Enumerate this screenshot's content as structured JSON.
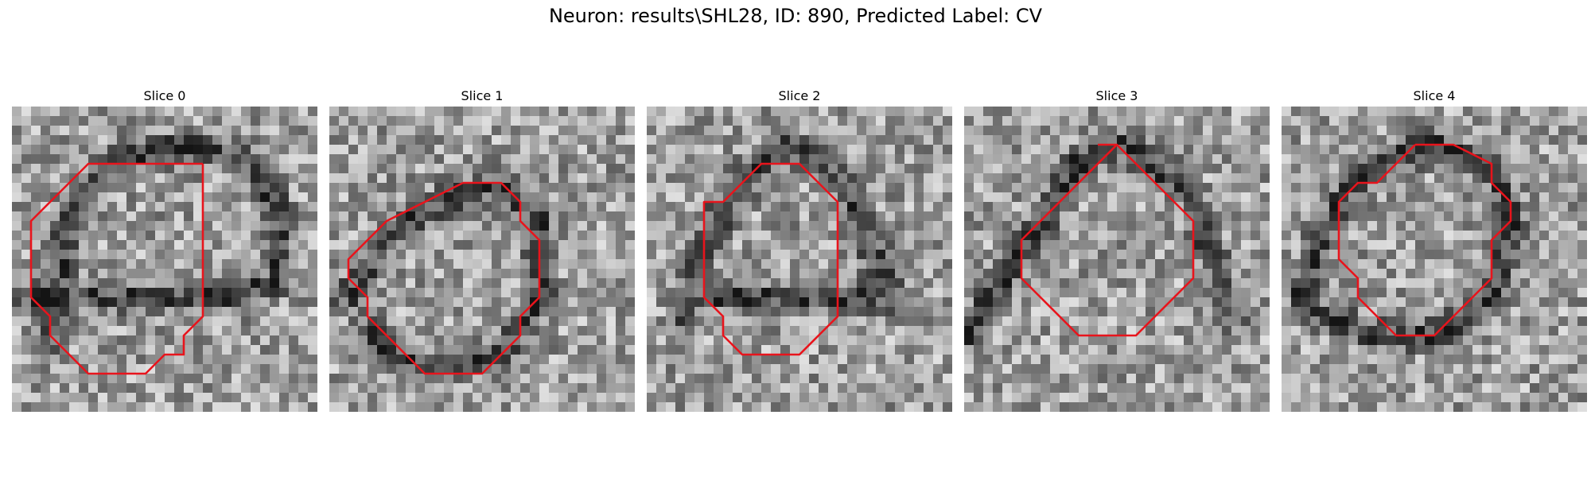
{
  "figure": {
    "title": "Neuron: results\\SHL28, ID: 890, Predicted Label: CV",
    "contour_color": "#e8141c"
  },
  "panels": [
    {
      "title": "Slice 0",
      "contour": [
        [
          10,
          3
        ],
        [
          4,
          3
        ],
        [
          3,
          4
        ],
        [
          2,
          5
        ],
        [
          1,
          6
        ],
        [
          1,
          10
        ],
        [
          2,
          11
        ],
        [
          2,
          12
        ],
        [
          3,
          13
        ],
        [
          4,
          14
        ],
        [
          5,
          14
        ],
        [
          7,
          14
        ],
        [
          8,
          13
        ],
        [
          9,
          13
        ],
        [
          9,
          12
        ],
        [
          10,
          11
        ],
        [
          10,
          10
        ],
        [
          10,
          4
        ],
        [
          10,
          3
        ]
      ],
      "dark_curve": [
        [
          2,
          12
        ],
        [
          3,
          6
        ],
        [
          5,
          3
        ],
        [
          9,
          2
        ],
        [
          13,
          3
        ],
        [
          14,
          6
        ],
        [
          14,
          9
        ],
        [
          12,
          10
        ],
        [
          8,
          10
        ],
        [
          4,
          10
        ],
        [
          1,
          10
        ]
      ]
    },
    {
      "title": "Slice 1",
      "contour": [
        [
          7,
          4
        ],
        [
          5,
          5
        ],
        [
          3,
          6
        ],
        [
          2,
          7
        ],
        [
          1,
          8
        ],
        [
          1,
          9
        ],
        [
          2,
          10
        ],
        [
          2,
          11
        ],
        [
          3,
          12
        ],
        [
          4,
          13
        ],
        [
          5,
          14
        ],
        [
          8,
          14
        ],
        [
          9,
          13
        ],
        [
          10,
          12
        ],
        [
          10,
          11
        ],
        [
          11,
          10
        ],
        [
          11,
          7
        ],
        [
          10,
          6
        ],
        [
          10,
          5
        ],
        [
          9,
          4
        ],
        [
          8,
          4
        ],
        [
          7,
          4
        ]
      ],
      "dark_curve": [
        [
          1,
          10
        ],
        [
          3,
          7
        ],
        [
          6,
          5
        ],
        [
          9,
          4
        ],
        [
          11,
          6
        ],
        [
          11,
          10
        ],
        [
          9,
          13
        ],
        [
          5,
          14
        ],
        [
          2,
          12
        ]
      ]
    },
    {
      "title": "Slice 2",
      "contour": [
        [
          7,
          3
        ],
        [
          6,
          3
        ],
        [
          5,
          4
        ],
        [
          4,
          5
        ],
        [
          3,
          5
        ],
        [
          3,
          7
        ],
        [
          3,
          10
        ],
        [
          4,
          11
        ],
        [
          4,
          12
        ],
        [
          5,
          13
        ],
        [
          6,
          13
        ],
        [
          8,
          13
        ],
        [
          9,
          12
        ],
        [
          10,
          11
        ],
        [
          10,
          10
        ],
        [
          10,
          5
        ],
        [
          9,
          4
        ],
        [
          8,
          3
        ],
        [
          7,
          3
        ]
      ],
      "dark_curve": [
        [
          2,
          11
        ],
        [
          3,
          7
        ],
        [
          5,
          4
        ],
        [
          7,
          2
        ],
        [
          9,
          3
        ],
        [
          11,
          5
        ],
        [
          12,
          8
        ],
        [
          13,
          10
        ],
        [
          10,
          10
        ],
        [
          7,
          10
        ],
        [
          3,
          10
        ]
      ]
    },
    {
      "title": "Slice 3",
      "contour": [
        [
          8,
          2
        ],
        [
          6,
          4
        ],
        [
          4,
          6
        ],
        [
          3,
          7
        ],
        [
          3,
          9
        ],
        [
          4,
          10
        ],
        [
          5,
          11
        ],
        [
          6,
          12
        ],
        [
          9,
          12
        ],
        [
          10,
          11
        ],
        [
          11,
          10
        ],
        [
          12,
          9
        ],
        [
          12,
          6
        ],
        [
          11,
          5
        ],
        [
          10,
          4
        ],
        [
          9,
          3
        ],
        [
          8,
          2
        ],
        [
          7,
          2
        ]
      ],
      "dark_curve": [
        [
          0,
          12
        ],
        [
          2,
          9
        ],
        [
          4,
          6
        ],
        [
          6,
          3
        ],
        [
          8,
          2
        ],
        [
          10,
          3
        ],
        [
          12,
          5
        ],
        [
          13,
          8
        ],
        [
          14,
          11
        ]
      ]
    },
    {
      "title": "Slice 4",
      "contour": [
        [
          7,
          2
        ],
        [
          6,
          3
        ],
        [
          5,
          4
        ],
        [
          4,
          4
        ],
        [
          3,
          5
        ],
        [
          3,
          8
        ],
        [
          4,
          9
        ],
        [
          4,
          10
        ],
        [
          5,
          11
        ],
        [
          6,
          12
        ],
        [
          8,
          12
        ],
        [
          9,
          11
        ],
        [
          10,
          10
        ],
        [
          11,
          9
        ],
        [
          11,
          7
        ],
        [
          12,
          6
        ],
        [
          12,
          5
        ],
        [
          11,
          4
        ],
        [
          11,
          3
        ],
        [
          9,
          2
        ],
        [
          7,
          2
        ]
      ],
      "dark_curve": [
        [
          1,
          10
        ],
        [
          2,
          7
        ],
        [
          3,
          5
        ],
        [
          5,
          3
        ],
        [
          8,
          2
        ],
        [
          11,
          3
        ],
        [
          12,
          6
        ],
        [
          11,
          10
        ],
        [
          8,
          12
        ],
        [
          5,
          12
        ],
        [
          2,
          11
        ]
      ]
    }
  ]
}
